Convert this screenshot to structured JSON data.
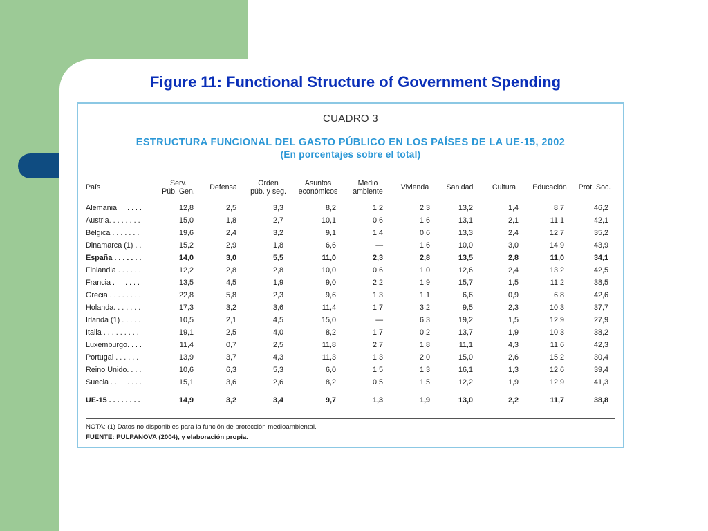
{
  "slide": {
    "title": "Figure 11: Functional Structure of Government Spending"
  },
  "figure": {
    "cuadro": "CUADRO 3",
    "title": "ESTRUCTURA FUNCIONAL DEL GASTO PÚBLICO EN LOS PAÍSES DE LA UE-15, 2002",
    "subtitle": "(En porcentajes sobre el total)",
    "headers": [
      "País",
      "Serv.\nPúb. Gen.",
      "Defensa",
      "Orden\npúb. y seg.",
      "Asuntos\neconómicos",
      "Medio\nambiente",
      "Vivienda",
      "Sanidad",
      "Cultura",
      "Educación",
      "Prot. Soc."
    ],
    "rows": [
      {
        "country": "Alemania . . . . . .",
        "values": [
          "12,8",
          "2,5",
          "3,3",
          "8,2",
          "1,2",
          "2,3",
          "13,2",
          "1,4",
          "8,7",
          "46,2"
        ]
      },
      {
        "country": "Austria. . . . . . . .",
        "values": [
          "15,0",
          "1,8",
          "2,7",
          "10,1",
          "0,6",
          "1,6",
          "13,1",
          "2,1",
          "11,1",
          "42,1"
        ]
      },
      {
        "country": "Bélgica . . . . . . .",
        "values": [
          "19,6",
          "2,4",
          "3,2",
          "9,1",
          "1,4",
          "0,6",
          "13,3",
          "2,4",
          "12,7",
          "35,2"
        ]
      },
      {
        "country": "Dinamarca (1) . .",
        "values": [
          "15,2",
          "2,9",
          "1,8",
          "6,6",
          "—",
          "1,6",
          "10,0",
          "3,0",
          "14,9",
          "43,9"
        ]
      },
      {
        "country": "España . . . . . . .",
        "values": [
          "14,0",
          "3,0",
          "5,5",
          "11,0",
          "2,3",
          "2,8",
          "13,5",
          "2,8",
          "11,0",
          "34,1"
        ],
        "bold": true
      },
      {
        "country": "Finlandia . . . . . .",
        "values": [
          "12,2",
          "2,8",
          "2,8",
          "10,0",
          "0,6",
          "1,0",
          "12,6",
          "2,4",
          "13,2",
          "42,5"
        ]
      },
      {
        "country": "Francia . . . . . . .",
        "values": [
          "13,5",
          "4,5",
          "1,9",
          "9,0",
          "2,2",
          "1,9",
          "15,7",
          "1,5",
          "11,2",
          "38,5"
        ]
      },
      {
        "country": "Grecia . . . . . . . .",
        "values": [
          "22,8",
          "5,8",
          "2,3",
          "9,6",
          "1,3",
          "1,1",
          "6,6",
          "0,9",
          "6,8",
          "42,6"
        ]
      },
      {
        "country": "Holanda. . . . . . .",
        "values": [
          "17,3",
          "3,2",
          "3,6",
          "11,4",
          "1,7",
          "3,2",
          "9,5",
          "2,3",
          "10,3",
          "37,7"
        ]
      },
      {
        "country": "Irlanda (1) . . . . .",
        "values": [
          "10,5",
          "2,1",
          "4,5",
          "15,0",
          "—",
          "6,3",
          "19,2",
          "1,5",
          "12,9",
          "27,9"
        ]
      },
      {
        "country": "Italia . . . . . . . . .",
        "values": [
          "19,1",
          "2,5",
          "4,0",
          "8,2",
          "1,7",
          "0,2",
          "13,7",
          "1,9",
          "10,3",
          "38,2"
        ]
      },
      {
        "country": "Luxemburgo. . . .",
        "values": [
          "11,4",
          "0,7",
          "2,5",
          "11,8",
          "2,7",
          "1,8",
          "11,1",
          "4,3",
          "11,6",
          "42,3"
        ]
      },
      {
        "country": "Portugal . . . . . .",
        "values": [
          "13,9",
          "3,7",
          "4,3",
          "11,3",
          "1,3",
          "2,0",
          "15,0",
          "2,6",
          "15,2",
          "30,4"
        ]
      },
      {
        "country": "Reino Unido. . . .",
        "values": [
          "10,6",
          "6,3",
          "5,3",
          "6,0",
          "1,5",
          "1,3",
          "16,1",
          "1,3",
          "12,6",
          "39,4"
        ]
      },
      {
        "country": "Suecia . . . . . . . .",
        "values": [
          "15,1",
          "3,6",
          "2,6",
          "8,2",
          "0,5",
          "1,5",
          "12,2",
          "1,9",
          "12,9",
          "41,3"
        ]
      }
    ],
    "total": {
      "country": "UE-15 . . . . . . . .",
      "values": [
        "14,9",
        "3,2",
        "3,4",
        "9,7",
        "1,3",
        "1,9",
        "13,0",
        "2,2",
        "11,7",
        "38,8"
      ]
    },
    "note": "NOTA: (1)    Datos no disponibles para la función de protección medioambiental.",
    "source": "FUENTE: PULPANOVA (2004), y elaboración propia."
  },
  "colors": {
    "green_block": "#9cca96",
    "navy_pill": "#0f4c81",
    "title_blue": "#0a2fb8",
    "table_title_blue": "#2b97d6",
    "frame_border": "#8cc8e4"
  }
}
